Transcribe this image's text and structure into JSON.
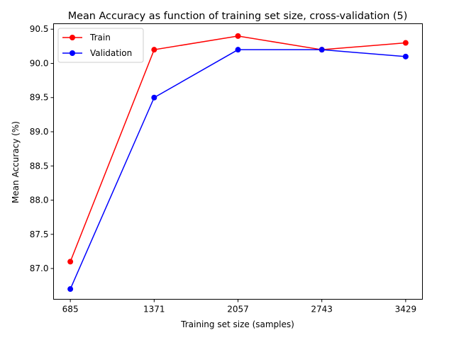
{
  "chart_data": {
    "type": "line",
    "title": "Mean Accuracy as function of training set size, cross-validation (5)",
    "xlabel": "Training set size (samples)",
    "ylabel": "Mean Accuracy (%)",
    "x": [
      685,
      1371,
      2057,
      2743,
      3429
    ],
    "x_tick_labels": [
      "685",
      "1371",
      "2057",
      "2743",
      "3429"
    ],
    "y_ticks": [
      87.0,
      87.5,
      88.0,
      88.5,
      89.0,
      89.5,
      90.0,
      90.5
    ],
    "y_tick_labels": [
      "87.0",
      "87.5",
      "88.0",
      "88.5",
      "89.0",
      "89.5",
      "90.0",
      "90.5"
    ],
    "ylim": [
      86.55,
      90.58
    ],
    "grid": false,
    "legend_position": "upper-left",
    "series": [
      {
        "name": "Train",
        "color": "#ff0000",
        "values": [
          87.1,
          90.2,
          90.4,
          90.2,
          90.3
        ]
      },
      {
        "name": "Validation",
        "color": "#0000ff",
        "values": [
          86.7,
          89.5,
          90.2,
          90.2,
          90.1
        ]
      }
    ]
  }
}
